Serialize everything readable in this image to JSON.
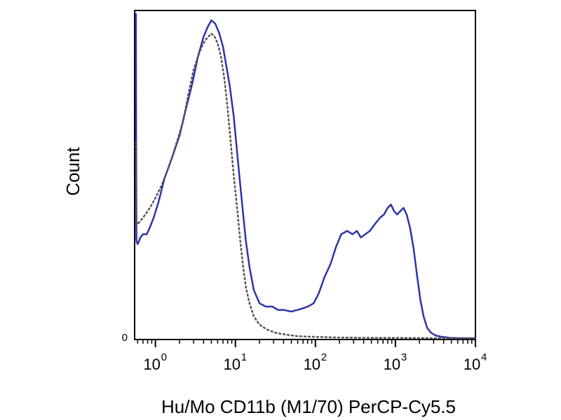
{
  "chart_data": {
    "type": "line",
    "xlabel": "Hu/Mo CD11b (M1/70) PerCP-Cy5.5",
    "ylabel": "Count",
    "x_scale": "log",
    "xlim": [
      0.55,
      10000
    ],
    "ylim": [
      0,
      1
    ],
    "y_ticks": [
      {
        "value": 0,
        "label": "0"
      }
    ],
    "x_ticks": [
      {
        "value": 1,
        "base": "10",
        "exp": "0"
      },
      {
        "value": 10,
        "base": "10",
        "exp": "1"
      },
      {
        "value": 100,
        "base": "10",
        "exp": "2"
      },
      {
        "value": 1000,
        "base": "10",
        "exp": "3"
      },
      {
        "value": 10000,
        "base": "10",
        "exp": "4"
      }
    ],
    "grid": false,
    "legend": "none",
    "series": [
      {
        "style": "solid",
        "color": "#2b35a8",
        "points": [
          [
            0.57,
            0.99
          ],
          [
            0.575,
            0.6
          ],
          [
            0.58,
            0.3
          ],
          [
            0.6,
            0.29
          ],
          [
            0.65,
            0.31
          ],
          [
            0.7,
            0.32
          ],
          [
            0.78,
            0.32
          ],
          [
            0.85,
            0.34
          ],
          [
            0.95,
            0.37
          ],
          [
            1.1,
            0.42
          ],
          [
            1.3,
            0.49
          ],
          [
            1.6,
            0.55
          ],
          [
            2.0,
            0.62
          ],
          [
            2.4,
            0.7
          ],
          [
            2.9,
            0.78
          ],
          [
            3.4,
            0.86
          ],
          [
            4.0,
            0.92
          ],
          [
            4.5,
            0.95
          ],
          [
            5.0,
            0.97
          ],
          [
            5.6,
            0.96
          ],
          [
            6.3,
            0.93
          ],
          [
            7.0,
            0.89
          ],
          [
            7.6,
            0.84
          ],
          [
            8.5,
            0.77
          ],
          [
            9.5,
            0.68
          ],
          [
            10.5,
            0.57
          ],
          [
            11.5,
            0.47
          ],
          [
            12.5,
            0.38
          ],
          [
            13.5,
            0.3
          ],
          [
            15,
            0.22
          ],
          [
            17,
            0.15
          ],
          [
            20,
            0.11
          ],
          [
            24,
            0.1
          ],
          [
            29,
            0.1
          ],
          [
            34,
            0.09
          ],
          [
            40,
            0.09
          ],
          [
            50,
            0.085
          ],
          [
            60,
            0.09
          ],
          [
            70,
            0.095
          ],
          [
            80,
            0.1
          ],
          [
            95,
            0.11
          ],
          [
            110,
            0.14
          ],
          [
            130,
            0.19
          ],
          [
            155,
            0.23
          ],
          [
            180,
            0.28
          ],
          [
            210,
            0.32
          ],
          [
            250,
            0.33
          ],
          [
            290,
            0.32
          ],
          [
            330,
            0.33
          ],
          [
            370,
            0.31
          ],
          [
            420,
            0.32
          ],
          [
            480,
            0.33
          ],
          [
            550,
            0.35
          ],
          [
            640,
            0.37
          ],
          [
            720,
            0.38
          ],
          [
            800,
            0.4
          ],
          [
            880,
            0.41
          ],
          [
            960,
            0.39
          ],
          [
            1050,
            0.38
          ],
          [
            1150,
            0.39
          ],
          [
            1260,
            0.4
          ],
          [
            1380,
            0.38
          ],
          [
            1520,
            0.34
          ],
          [
            1680,
            0.28
          ],
          [
            1850,
            0.2
          ],
          [
            2050,
            0.12
          ],
          [
            2250,
            0.07
          ],
          [
            2500,
            0.035
          ],
          [
            2800,
            0.02
          ],
          [
            3200,
            0.012
          ],
          [
            3800,
            0.008
          ],
          [
            4800,
            0.005
          ],
          [
            6500,
            0.004
          ],
          [
            10000,
            0.004
          ]
        ]
      },
      {
        "style": "dotted",
        "color": "#555555",
        "points": [
          [
            0.57,
            0.6
          ],
          [
            0.58,
            0.36
          ],
          [
            0.6,
            0.35
          ],
          [
            0.7,
            0.37
          ],
          [
            0.85,
            0.4
          ],
          [
            1.0,
            0.43
          ],
          [
            1.2,
            0.47
          ],
          [
            1.5,
            0.53
          ],
          [
            1.8,
            0.59
          ],
          [
            2.2,
            0.66
          ],
          [
            2.6,
            0.75
          ],
          [
            3.0,
            0.82
          ],
          [
            3.4,
            0.86
          ],
          [
            3.8,
            0.89
          ],
          [
            4.2,
            0.91
          ],
          [
            4.6,
            0.92
          ],
          [
            5.0,
            0.93
          ],
          [
            5.5,
            0.92
          ],
          [
            6.0,
            0.9
          ],
          [
            6.6,
            0.86
          ],
          [
            7.3,
            0.79
          ],
          [
            8.0,
            0.7
          ],
          [
            8.8,
            0.59
          ],
          [
            9.6,
            0.49
          ],
          [
            10.5,
            0.4
          ],
          [
            11.5,
            0.3
          ],
          [
            12.5,
            0.22
          ],
          [
            13.5,
            0.16
          ],
          [
            15,
            0.11
          ],
          [
            17,
            0.07
          ],
          [
            20,
            0.045
          ],
          [
            25,
            0.03
          ],
          [
            32,
            0.02
          ],
          [
            42,
            0.015
          ],
          [
            60,
            0.01
          ],
          [
            100,
            0.008
          ],
          [
            200,
            0.006
          ],
          [
            500,
            0.005
          ],
          [
            1000,
            0.005
          ],
          [
            3000,
            0.004
          ],
          [
            10000,
            0.004
          ]
        ]
      }
    ]
  }
}
